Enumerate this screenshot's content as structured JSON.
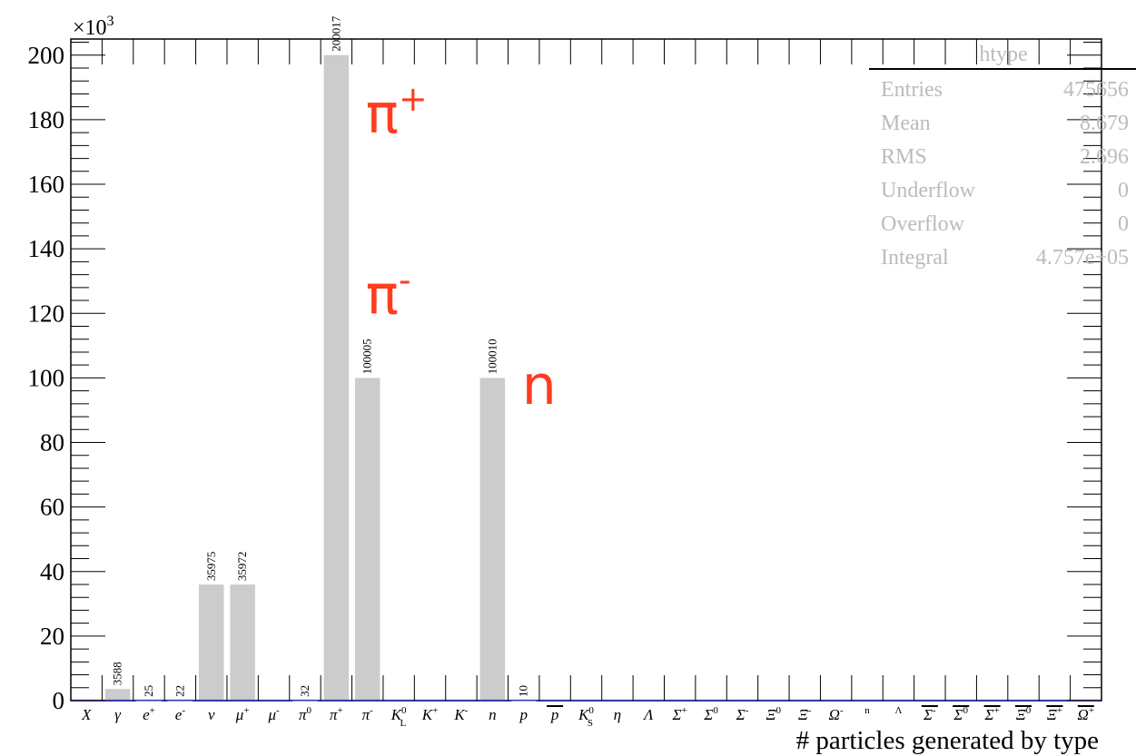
{
  "chart_data": {
    "type": "bar",
    "scale_label": "×10",
    "scale_exponent": "3",
    "xlabel": "# particles generated by type",
    "ylabel": "",
    "ylim": [
      0,
      205000
    ],
    "yticks": [
      0,
      20000,
      40000,
      60000,
      80000,
      100000,
      120000,
      140000,
      160000,
      180000,
      200000
    ],
    "ytick_labels": [
      "0",
      "20",
      "40",
      "60",
      "80",
      "100",
      "120",
      "140",
      "160",
      "180",
      "200"
    ],
    "bar_color": "#cccccc",
    "baseline_color": "#3333cc",
    "categories": [
      {
        "base": "X"
      },
      {
        "base": "γ"
      },
      {
        "base": "e",
        "sup": "+"
      },
      {
        "base": "e",
        "sup": "-"
      },
      {
        "base": "ν"
      },
      {
        "base": "μ",
        "sup": "+"
      },
      {
        "base": "μ",
        "sup": "-"
      },
      {
        "base": "π",
        "sup": "0"
      },
      {
        "base": "π",
        "sup": "+"
      },
      {
        "base": "π",
        "sup": "-"
      },
      {
        "base": "K",
        "sup": "0",
        "sub": "L"
      },
      {
        "base": "K",
        "sup": "+"
      },
      {
        "base": "K",
        "sup": "-"
      },
      {
        "base": "n"
      },
      {
        "base": "p"
      },
      {
        "base": "p",
        "bar": true
      },
      {
        "base": "K",
        "sup": "0",
        "sub": "S"
      },
      {
        "base": "η"
      },
      {
        "base": "Λ"
      },
      {
        "base": "Σ",
        "sup": "+"
      },
      {
        "base": "Σ",
        "sup": "0"
      },
      {
        "base": "Σ",
        "sup": "-"
      },
      {
        "base": "Ξ",
        "sup": "0"
      },
      {
        "base": "Ξ",
        "sup": "-"
      },
      {
        "base": "Ω",
        "sup": "-"
      },
      {
        "base": "",
        "sup": "n"
      },
      {
        "base": "",
        "sup": "Λ"
      },
      {
        "base": "Σ",
        "sup": "-",
        "bar": true
      },
      {
        "base": "Σ",
        "sup": "0",
        "bar": true
      },
      {
        "base": "Σ",
        "sup": "+",
        "bar": true
      },
      {
        "base": "Ξ",
        "sup": "0",
        "bar": true
      },
      {
        "base": "Ξ",
        "sup": "+",
        "bar": true
      },
      {
        "base": "Ω",
        "sup": "+",
        "bar": true
      }
    ],
    "values": [
      0,
      3588,
      25,
      22,
      35975,
      35972,
      0,
      32,
      200017,
      100005,
      0,
      0,
      0,
      100010,
      10,
      0,
      0,
      0,
      0,
      0,
      0,
      0,
      0,
      0,
      0,
      0,
      0,
      0,
      0,
      0,
      0,
      0,
      0
    ],
    "data_labels": [
      "",
      "3588",
      "25",
      "22",
      "35975",
      "35972",
      "",
      "32",
      "200017",
      "100005",
      "",
      "",
      "",
      "100010",
      "10",
      "",
      "",
      "",
      "",
      "",
      "",
      "",
      "",
      "",
      "",
      "",
      "",
      "",
      "",
      "",
      "",
      "",
      ""
    ],
    "annotations": [
      {
        "text": "π",
        "sup": "+",
        "category_index": 9,
        "y": 176000,
        "color": "#ff3d1f"
      },
      {
        "text": "π",
        "sup": "-",
        "category_index": 9,
        "y": 120000,
        "color": "#ff3d1f"
      },
      {
        "text": "n",
        "category_index": 14,
        "y": 92000,
        "color": "#ff3d1f"
      }
    ],
    "stats_box": {
      "title": "htype",
      "rows": [
        {
          "label": "Entries",
          "value": "475656"
        },
        {
          "label": "Mean",
          "value": "8.679"
        },
        {
          "label": "RMS",
          "value": "2.696"
        },
        {
          "label": "Underflow",
          "value": "0"
        },
        {
          "label": "Overflow",
          "value": "0"
        },
        {
          "label": "Integral",
          "value": "4.757e+05"
        }
      ]
    }
  }
}
